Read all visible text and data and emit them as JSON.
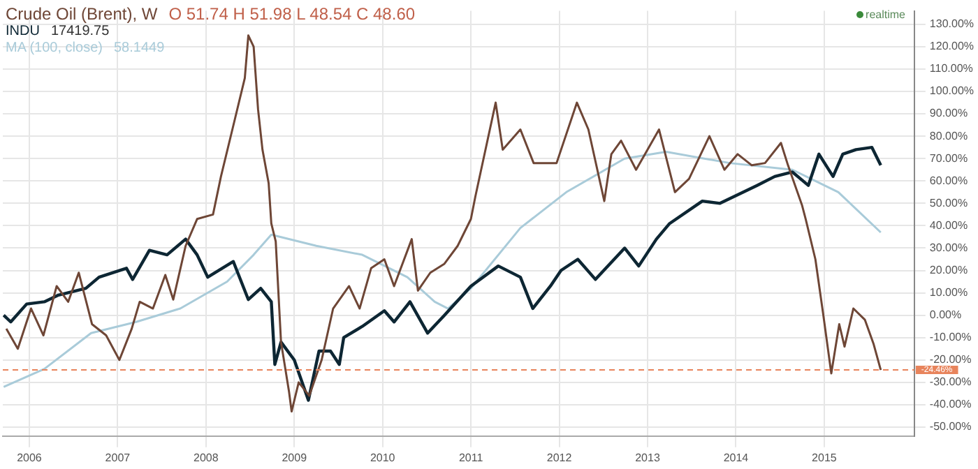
{
  "chart_data": {
    "type": "line",
    "xlim": [
      2005.7,
      2016.02
    ],
    "xticks": [
      2006,
      2007,
      2008,
      2009,
      2010,
      2011,
      2012,
      2013,
      2014,
      2015
    ],
    "ylim": [
      -54,
      136
    ],
    "yticks": [
      {
        "value": -50,
        "label": "-50.00%"
      },
      {
        "value": -40,
        "label": "-40.00%"
      },
      {
        "value": -30,
        "label": "-30.00%"
      },
      {
        "value": -20,
        "label": "-20.00%"
      },
      {
        "value": -10,
        "label": "-10.00%"
      },
      {
        "value": 0,
        "label": "0.00%"
      },
      {
        "value": 10,
        "label": "10.00%"
      },
      {
        "value": 20,
        "label": "20.00%"
      },
      {
        "value": 30,
        "label": "30.00%"
      },
      {
        "value": 40,
        "label": "40.00%"
      },
      {
        "value": 50,
        "label": "50.00%"
      },
      {
        "value": 60,
        "label": "60.00%"
      },
      {
        "value": 70,
        "label": "70.00%"
      },
      {
        "value": 80,
        "label": "80.00%"
      },
      {
        "value": 90,
        "label": "90.00%"
      },
      {
        "value": 100,
        "label": "100.00%"
      },
      {
        "value": 110,
        "label": "110.00%"
      },
      {
        "value": 120,
        "label": "120.00%"
      },
      {
        "value": 130,
        "label": "130.00%"
      }
    ],
    "grid": true,
    "legend": "top left",
    "marker": "none",
    "series": [
      {
        "name": "Crude Oil (Brent), W",
        "color": "#6e4636",
        "x": [
          2005.74,
          2005.87,
          2006.02,
          2006.16,
          2006.31,
          2006.44,
          2006.56,
          2006.71,
          2006.87,
          2007.02,
          2007.16,
          2007.25,
          2007.4,
          2007.54,
          2007.63,
          2007.77,
          2007.9,
          2008.08,
          2008.17,
          2008.33,
          2008.44,
          2008.48,
          2008.54,
          2008.59,
          2008.64,
          2008.71,
          2008.74,
          2008.79,
          2008.85,
          2008.94,
          2008.97,
          2009.05,
          2009.17,
          2009.31,
          2009.44,
          2009.62,
          2009.74,
          2009.87,
          2010.02,
          2010.13,
          2010.33,
          2010.4,
          2010.54,
          2010.7,
          2010.85,
          2011.0,
          2011.05,
          2011.28,
          2011.36,
          2011.56,
          2011.71,
          2011.97,
          2012.2,
          2012.33,
          2012.51,
          2012.59,
          2012.7,
          2012.87,
          2013.13,
          2013.31,
          2013.47,
          2013.7,
          2013.87,
          2014.02,
          2014.18,
          2014.33,
          2014.51,
          2014.59,
          2014.75,
          2014.79,
          2014.9,
          2014.99,
          2015.08,
          2015.17,
          2015.23,
          2015.33,
          2015.46,
          2015.56,
          2015.64
        ],
        "values": [
          -6,
          -15,
          3,
          -9,
          13,
          6,
          19,
          -4,
          -9,
          -20,
          -6,
          6,
          3,
          18,
          7,
          31,
          43,
          45,
          62,
          88,
          106,
          125,
          120,
          92,
          74,
          59,
          41,
          33,
          -12,
          -34,
          -43,
          -30,
          -36,
          -20,
          3,
          13,
          3,
          21,
          25,
          13,
          34,
          11,
          19,
          23,
          31,
          43,
          53,
          95,
          74,
          83,
          68,
          68,
          95,
          83,
          51,
          72,
          78,
          65,
          83,
          55,
          61,
          80,
          65,
          72,
          67,
          68,
          77,
          67,
          49,
          43,
          25,
          0,
          -26,
          -4,
          -14,
          3,
          -2,
          -13,
          -24.46
        ]
      },
      {
        "name": "INDU",
        "color": "#0d2633",
        "x": [
          2005.71,
          2005.79,
          2005.97,
          2006.17,
          2006.33,
          2006.64,
          2006.79,
          2007.1,
          2007.17,
          2007.36,
          2007.56,
          2007.77,
          2007.9,
          2008.02,
          2008.31,
          2008.48,
          2008.62,
          2008.74,
          2008.78,
          2008.85,
          2009.0,
          2009.16,
          2009.28,
          2009.41,
          2009.51,
          2009.56,
          2009.77,
          2010.02,
          2010.13,
          2010.31,
          2010.51,
          2010.7,
          2011.0,
          2011.31,
          2011.56,
          2011.7,
          2011.9,
          2012.02,
          2012.21,
          2012.41,
          2012.74,
          2012.9,
          2013.1,
          2013.25,
          2013.62,
          2013.82,
          2014.24,
          2014.44,
          2014.64,
          2014.82,
          2014.94,
          2015.1,
          2015.21,
          2015.36,
          2015.54,
          2015.64
        ],
        "values": [
          0,
          -3,
          5,
          6,
          9,
          12,
          17,
          21,
          16,
          29,
          27,
          34,
          27,
          17,
          24,
          7,
          12,
          6,
          -22,
          -12,
          -20,
          -38,
          -16,
          -16,
          -22,
          -10,
          -5,
          2,
          -3,
          6,
          -8,
          0,
          13,
          22,
          17,
          3,
          13,
          20,
          25,
          16,
          30,
          22,
          34,
          41,
          51,
          50,
          58,
          62,
          64,
          58,
          72,
          62,
          72,
          74,
          75,
          67
        ]
      },
      {
        "name": "MA (100, close)",
        "color": "#a9cbd9",
        "x": [
          2005.71,
          2006.17,
          2006.7,
          2007.21,
          2007.71,
          2008.24,
          2008.54,
          2008.74,
          2009.25,
          2009.77,
          2010.28,
          2010.59,
          2010.74,
          2011.0,
          2011.56,
          2012.08,
          2012.74,
          2013.21,
          2013.93,
          2014.64,
          2015.16,
          2015.64
        ],
        "values": [
          -32,
          -24,
          -8,
          -3,
          3,
          15,
          27,
          36,
          31,
          27,
          17,
          6,
          3,
          12,
          39,
          55,
          70,
          73,
          68,
          65,
          55,
          37
        ]
      }
    ],
    "ref_lines": [
      {
        "axis": "y",
        "value": -24.46,
        "label": "-24.46%",
        "color": "#e8845c",
        "line_style": "dashed"
      }
    ],
    "annotations": [
      "O 51.74 H 51.98 L 48.54 C 48.60",
      "17419.75",
      "58.1449",
      "realtime"
    ]
  }
}
